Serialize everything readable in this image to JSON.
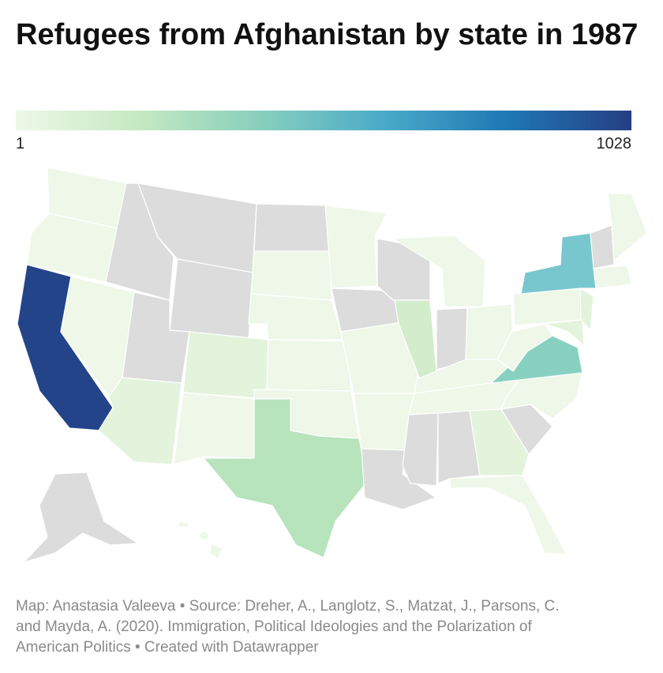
{
  "title": "Refugees from Afghanistan by state in 1987",
  "legend": {
    "min_label": "1",
    "max_label": "1028",
    "stops": [
      "#eef8e8",
      "#c5e9c1",
      "#86cfbd",
      "#4aaac9",
      "#1f77b4",
      "#263e83"
    ]
  },
  "colors": {
    "no_data": "#dcdcdc",
    "very_low": "#eef7e8",
    "low": "#e3f3dc",
    "low_mid": "#d3eccb",
    "mid": "#b7e3bd",
    "mid_high": "#88d1c0",
    "high": "#79c7ce",
    "max": "#24448a"
  },
  "footer": {
    "line1": "Map: Anastasia Valeeva • Source: Dreher, A., Langlotz, S., Matzat, J., Parsons, C.",
    "line2": "and Mayda, A. (2020). Immigration, Political Ideologies and the Polarization of",
    "line3": "American Politics • Created with Datawrapper"
  }
}
